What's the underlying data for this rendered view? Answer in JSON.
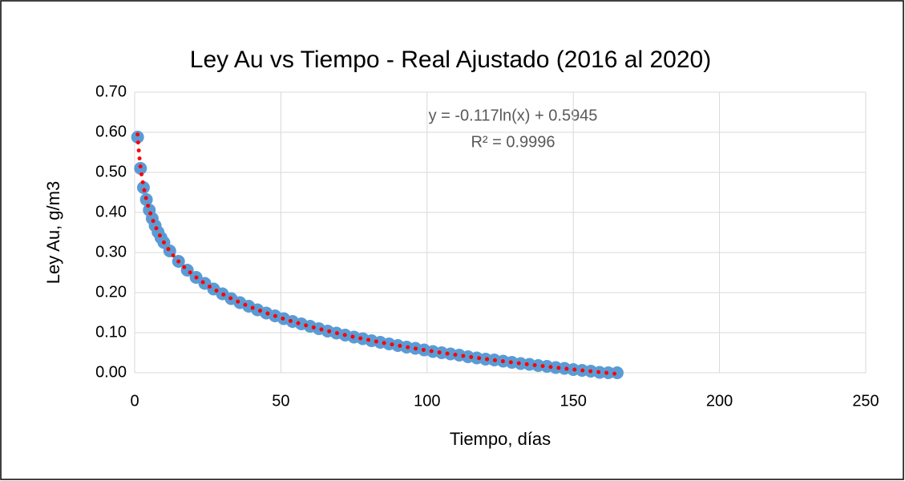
{
  "chart_data": {
    "type": "scatter",
    "title": "Ley Au vs Tiempo - Real Ajustado (2016 al 2020)",
    "xlabel": "Tiempo, días",
    "ylabel": "Ley Au, g/m3",
    "annotations": [
      "y = -0.117ln(x) + 0.5945",
      "R² = 0.9996"
    ],
    "series": [
      {
        "color": "#5b9bd5",
        "x": [
          1,
          2,
          3,
          4,
          5,
          6,
          7,
          8,
          9,
          10,
          12,
          15,
          18,
          21,
          24,
          27,
          30,
          33,
          36,
          39,
          42,
          45,
          48,
          51,
          54,
          57,
          60,
          63,
          66,
          69,
          72,
          75,
          78,
          81,
          84,
          87,
          90,
          93,
          96,
          99,
          102,
          105,
          108,
          111,
          114,
          117,
          120,
          123,
          126,
          129,
          132,
          135,
          138,
          141,
          144,
          147,
          150,
          153,
          156,
          159,
          162,
          165
        ],
        "values": [
          0.588,
          0.51,
          0.462,
          0.432,
          0.406,
          0.385,
          0.367,
          0.351,
          0.337,
          0.325,
          0.304,
          0.278,
          0.256,
          0.238,
          0.223,
          0.209,
          0.197,
          0.185,
          0.175,
          0.166,
          0.157,
          0.149,
          0.142,
          0.135,
          0.128,
          0.122,
          0.116,
          0.11,
          0.104,
          0.099,
          0.094,
          0.089,
          0.085,
          0.08,
          0.076,
          0.072,
          0.068,
          0.064,
          0.061,
          0.057,
          0.053,
          0.05,
          0.047,
          0.044,
          0.04,
          0.037,
          0.034,
          0.032,
          0.029,
          0.026,
          0.023,
          0.021,
          0.018,
          0.016,
          0.013,
          0.011,
          0.008,
          0.006,
          0.004,
          0.001,
          0.0,
          0.0
        ]
      }
    ],
    "trendline": {
      "type": "log",
      "slope": -0.117,
      "intercept": 0.5945,
      "color": "#ff0000"
    },
    "xlim": [
      0,
      250
    ],
    "xticks": [
      0,
      50,
      100,
      150,
      200,
      250
    ],
    "ylim": [
      0,
      0.7
    ],
    "yticks": [
      {
        "value": 0,
        "label": "0.00"
      },
      {
        "value": 0.1,
        "label": "0.10"
      },
      {
        "value": 0.2,
        "label": "0.20"
      },
      {
        "value": 0.3,
        "label": "0.30"
      },
      {
        "value": 0.4,
        "label": "0.40"
      },
      {
        "value": 0.5,
        "label": "0.50"
      },
      {
        "value": 0.6,
        "label": "0.60"
      },
      {
        "value": 0.7,
        "label": "0.70"
      }
    ],
    "grid": true
  }
}
